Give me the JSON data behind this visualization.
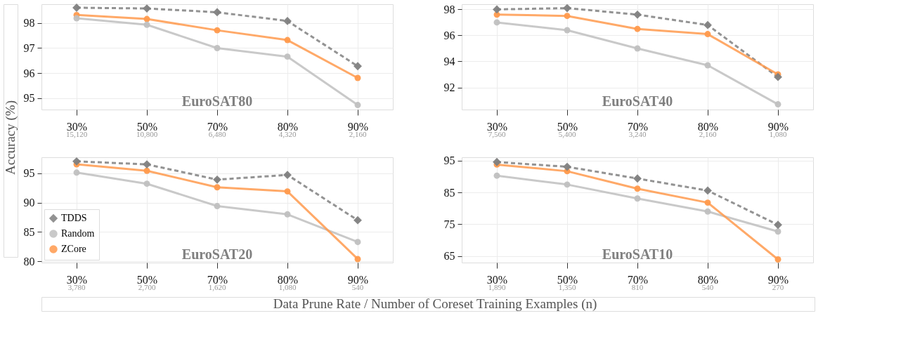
{
  "chart_data": [
    {
      "type": "line",
      "title": "EuroSAT80",
      "ylabel": "Accuracy (%)",
      "categories": [
        "30%",
        "50%",
        "70%",
        "80%",
        "90%"
      ],
      "annotations": [
        "15,120",
        "10,800",
        "6,480",
        "4,320",
        "2,160"
      ],
      "ylim": [
        94.55,
        98.75
      ],
      "yticks": [
        95,
        96,
        97,
        98
      ],
      "grid": true,
      "legend": false,
      "series": [
        {
          "color": "#808080",
          "marker": "diamond",
          "line_style": "dashed",
          "values": [
            98.61,
            98.58,
            98.43,
            98.08,
            96.28
          ]
        },
        {
          "color": "#c0c0c0",
          "marker": "circle",
          "line_style": "solid",
          "values": [
            98.19,
            97.93,
            97.0,
            96.66,
            94.73
          ]
        },
        {
          "color": "#ff9a4d",
          "marker": "circle",
          "line_style": "solid",
          "values": [
            98.32,
            98.16,
            97.71,
            97.32,
            95.81
          ]
        }
      ]
    },
    {
      "type": "line",
      "title": "EuroSAT40",
      "categories": [
        "30%",
        "50%",
        "70%",
        "80%",
        "90%"
      ],
      "annotations": [
        "7,560",
        "5,400",
        "3,240",
        "2,160",
        "1,080"
      ],
      "ylim": [
        90.3,
        98.4
      ],
      "yticks": [
        92,
        94,
        96,
        98
      ],
      "grid": true,
      "legend": false,
      "series": [
        {
          "color": "#808080",
          "marker": "diamond",
          "line_style": "dashed",
          "values": [
            98.0,
            98.1,
            97.6,
            96.8,
            92.8
          ]
        },
        {
          "color": "#c0c0c0",
          "marker": "circle",
          "line_style": "solid",
          "values": [
            97.0,
            96.4,
            95.0,
            93.7,
            90.7
          ]
        },
        {
          "color": "#ff9a4d",
          "marker": "circle",
          "line_style": "solid",
          "values": [
            97.6,
            97.5,
            96.5,
            96.1,
            93.0
          ]
        }
      ]
    },
    {
      "type": "line",
      "title": "EuroSAT20",
      "xlabel": "Data Prune Rate / Number of Coreset Training Examples (n)",
      "categories": [
        "30%",
        "50%",
        "70%",
        "80%",
        "90%"
      ],
      "annotations": [
        "3,780",
        "2,700",
        "1,620",
        "1,080",
        "540"
      ],
      "ylim": [
        79.8,
        97.7
      ],
      "yticks": [
        80,
        85,
        90,
        95
      ],
      "grid": true,
      "legend": "bottom left",
      "series": [
        {
          "name": "TDDS",
          "color": "#808080",
          "marker": "diamond",
          "line_style": "dashed",
          "values": [
            97.0,
            96.5,
            93.9,
            94.7,
            87.0
          ]
        },
        {
          "name": "Random",
          "color": "#c0c0c0",
          "marker": "circle",
          "line_style": "solid",
          "values": [
            95.1,
            93.2,
            89.4,
            88.0,
            83.3
          ]
        },
        {
          "name": "ZCore",
          "color": "#ff9a4d",
          "marker": "circle",
          "line_style": "solid",
          "values": [
            96.5,
            95.4,
            92.6,
            91.9,
            80.4
          ]
        }
      ]
    },
    {
      "type": "line",
      "title": "EuroSAT10",
      "categories": [
        "30%",
        "50%",
        "70%",
        "80%",
        "90%"
      ],
      "annotations": [
        "1,890",
        "1,350",
        "810",
        "540",
        "270"
      ],
      "ylim": [
        62.9,
        96.1
      ],
      "yticks": [
        65,
        75,
        85,
        95
      ],
      "grid": true,
      "legend": false,
      "series": [
        {
          "color": "#808080",
          "marker": "diamond",
          "line_style": "dashed",
          "values": [
            94.6,
            93.1,
            89.4,
            85.6,
            74.8
          ]
        },
        {
          "color": "#c0c0c0",
          "marker": "circle",
          "line_style": "solid",
          "values": [
            90.3,
            87.5,
            83.1,
            79.0,
            72.7
          ]
        },
        {
          "color": "#ff9a4d",
          "marker": "circle",
          "line_style": "solid",
          "values": [
            93.8,
            91.7,
            86.2,
            81.8,
            63.9
          ]
        }
      ]
    }
  ]
}
